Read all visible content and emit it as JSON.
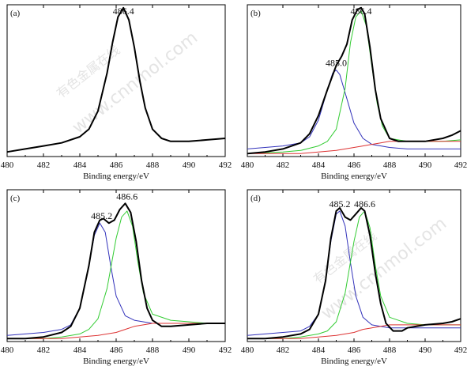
{
  "watermark": {
    "cn": "有色金属在线",
    "url": "www.cnnmol.com"
  },
  "chart_data": [
    {
      "type": "line",
      "panel_label": "(a)",
      "xlabel": "Binding energy/eV",
      "ylabel": "",
      "xlim": [
        480,
        492
      ],
      "xticks": [
        "480",
        "482",
        "484",
        "486",
        "488",
        "490",
        "492"
      ],
      "peak_labels": [
        {
          "text": "486.4",
          "x": 486.4
        }
      ],
      "series": [
        {
          "color": "#000000",
          "x": [
            480,
            481,
            482,
            483,
            484,
            484.5,
            485,
            485.5,
            485.8,
            486.1,
            486.4,
            486.7,
            487.0,
            487.3,
            487.6,
            488,
            488.5,
            489,
            490,
            491,
            492
          ],
          "y": [
            0.03,
            0.05,
            0.07,
            0.09,
            0.13,
            0.18,
            0.3,
            0.55,
            0.75,
            0.92,
            0.98,
            0.9,
            0.72,
            0.5,
            0.32,
            0.18,
            0.12,
            0.1,
            0.1,
            0.11,
            0.12
          ]
        }
      ]
    },
    {
      "type": "line",
      "panel_label": "(b)",
      "xlabel": "Binding energy/eV",
      "ylabel": "",
      "xlim": [
        480,
        492
      ],
      "xticks": [
        "480",
        "482",
        "484",
        "486",
        "488",
        "490",
        "492"
      ],
      "peak_labels": [
        {
          "text": "485.0",
          "x": 485.0
        },
        {
          "text": "486.4",
          "x": 486.4
        }
      ],
      "series": [
        {
          "color": "#000000",
          "x": [
            480,
            481,
            482,
            483,
            483.5,
            484,
            484.5,
            485,
            485.3,
            485.6,
            485.9,
            486.2,
            486.4,
            486.6,
            486.9,
            487.2,
            487.5,
            488,
            488.5,
            489,
            490,
            491,
            491.5,
            492
          ],
          "y": [
            0.02,
            0.03,
            0.05,
            0.09,
            0.15,
            0.27,
            0.44,
            0.6,
            0.66,
            0.74,
            0.9,
            0.97,
            0.98,
            0.94,
            0.72,
            0.44,
            0.25,
            0.12,
            0.1,
            0.1,
            0.1,
            0.12,
            0.14,
            0.17
          ]
        },
        {
          "color": "#3333bb",
          "x": [
            480,
            481,
            482,
            483,
            483.5,
            484,
            484.5,
            484.8,
            485.0,
            485.2,
            485.5,
            486,
            486.5,
            487,
            488,
            489,
            490,
            491,
            492
          ],
          "y": [
            0.05,
            0.06,
            0.07,
            0.09,
            0.13,
            0.24,
            0.44,
            0.55,
            0.57,
            0.54,
            0.42,
            0.22,
            0.12,
            0.08,
            0.06,
            0.05,
            0.05,
            0.05,
            0.05
          ]
        },
        {
          "color": "#33cc33",
          "x": [
            480,
            482,
            483,
            484,
            484.5,
            485,
            485.5,
            485.8,
            486.1,
            486.4,
            486.7,
            487.0,
            487.3,
            487.6,
            488,
            489,
            490,
            491,
            492
          ],
          "y": [
            0.02,
            0.03,
            0.04,
            0.07,
            0.1,
            0.18,
            0.45,
            0.75,
            0.92,
            0.96,
            0.86,
            0.6,
            0.35,
            0.2,
            0.12,
            0.1,
            0.1,
            0.1,
            0.11
          ]
        },
        {
          "color": "#dd3333",
          "x": [
            480,
            481,
            482,
            483,
            484,
            485,
            486,
            486.5,
            487,
            487.5,
            488,
            489,
            490,
            491,
            492
          ],
          "y": [
            0.02,
            0.02,
            0.02,
            0.02,
            0.03,
            0.04,
            0.06,
            0.07,
            0.08,
            0.09,
            0.1,
            0.1,
            0.1,
            0.1,
            0.1
          ]
        }
      ]
    },
    {
      "type": "line",
      "panel_label": "(c)",
      "xlabel": "Binding energy/eV",
      "ylabel": "",
      "xlim": [
        480,
        492
      ],
      "xticks": [
        "480",
        "482",
        "484",
        "486",
        "488",
        "490",
        "492"
      ],
      "peak_labels": [
        {
          "text": "485.2",
          "x": 485.2
        },
        {
          "text": "486.6",
          "x": 486.6
        }
      ],
      "series": [
        {
          "color": "#000000",
          "x": [
            480,
            481,
            482,
            483,
            483.5,
            484,
            484.5,
            484.8,
            485.1,
            485.3,
            485.6,
            485.9,
            486.2,
            486.5,
            486.8,
            487.1,
            487.4,
            487.7,
            488,
            488.5,
            489,
            490,
            491,
            492
          ],
          "y": [
            0.02,
            0.02,
            0.03,
            0.06,
            0.1,
            0.22,
            0.5,
            0.72,
            0.8,
            0.81,
            0.78,
            0.8,
            0.87,
            0.91,
            0.85,
            0.66,
            0.4,
            0.22,
            0.14,
            0.1,
            0.1,
            0.11,
            0.12,
            0.12
          ]
        },
        {
          "color": "#3333bb",
          "x": [
            480,
            481,
            482,
            483,
            483.5,
            484,
            484.5,
            484.8,
            485.1,
            485.4,
            485.7,
            486,
            486.5,
            487,
            488,
            489,
            490,
            491,
            492
          ],
          "y": [
            0.04,
            0.05,
            0.06,
            0.08,
            0.11,
            0.22,
            0.5,
            0.7,
            0.78,
            0.72,
            0.5,
            0.3,
            0.17,
            0.14,
            0.12,
            0.12,
            0.12,
            0.12,
            0.12
          ]
        },
        {
          "color": "#33cc33",
          "x": [
            480,
            482,
            483,
            484,
            484.5,
            485,
            485.5,
            486,
            486.3,
            486.6,
            486.9,
            487.2,
            487.5,
            488,
            489,
            490,
            491,
            492
          ],
          "y": [
            0.02,
            0.02,
            0.03,
            0.05,
            0.08,
            0.15,
            0.35,
            0.68,
            0.82,
            0.86,
            0.76,
            0.52,
            0.32,
            0.18,
            0.14,
            0.13,
            0.12,
            0.12
          ]
        },
        {
          "color": "#dd3333",
          "x": [
            480,
            481,
            482,
            483,
            484,
            485,
            486,
            486.5,
            487,
            487.5,
            488,
            489,
            490,
            491,
            492
          ],
          "y": [
            0.02,
            0.02,
            0.02,
            0.02,
            0.03,
            0.04,
            0.06,
            0.08,
            0.1,
            0.11,
            0.12,
            0.12,
            0.12,
            0.12,
            0.12
          ]
        }
      ]
    },
    {
      "type": "line",
      "panel_label": "(d)",
      "xlabel": "Binding energy/eV",
      "ylabel": "",
      "xlim": [
        480,
        492
      ],
      "xticks": [
        "480",
        "482",
        "484",
        "486",
        "488",
        "490",
        "492"
      ],
      "peak_labels": [
        {
          "text": "485.2",
          "x": 485.2
        },
        {
          "text": "486.6",
          "x": 486.6
        }
      ],
      "series": [
        {
          "color": "#000000",
          "x": [
            480,
            481,
            482,
            483,
            483.5,
            484,
            484.4,
            484.7,
            485.0,
            485.2,
            485.5,
            485.8,
            486.1,
            486.4,
            486.6,
            486.9,
            487.2,
            487.5,
            487.8,
            488.2,
            488.7,
            489,
            490,
            491,
            491.5,
            492
          ],
          "y": [
            0.02,
            0.02,
            0.03,
            0.05,
            0.08,
            0.18,
            0.4,
            0.68,
            0.86,
            0.88,
            0.82,
            0.8,
            0.84,
            0.88,
            0.86,
            0.7,
            0.45,
            0.25,
            0.12,
            0.07,
            0.07,
            0.09,
            0.11,
            0.12,
            0.13,
            0.15
          ]
        },
        {
          "color": "#3333bb",
          "x": [
            480,
            481,
            482,
            483,
            483.5,
            484,
            484.4,
            484.7,
            485.0,
            485.2,
            485.5,
            485.8,
            486.1,
            486.5,
            487,
            488,
            489,
            490,
            491,
            492
          ],
          "y": [
            0.04,
            0.05,
            0.06,
            0.07,
            0.1,
            0.18,
            0.4,
            0.66,
            0.84,
            0.86,
            0.76,
            0.52,
            0.3,
            0.16,
            0.11,
            0.09,
            0.09,
            0.09,
            0.09,
            0.09
          ]
        },
        {
          "color": "#33cc33",
          "x": [
            480,
            482,
            483,
            484,
            484.5,
            485,
            485.5,
            486,
            486.3,
            486.6,
            486.9,
            487.2,
            487.5,
            488,
            489,
            490,
            491,
            492
          ],
          "y": [
            0.02,
            0.02,
            0.03,
            0.05,
            0.07,
            0.13,
            0.32,
            0.66,
            0.82,
            0.86,
            0.75,
            0.5,
            0.3,
            0.16,
            0.12,
            0.11,
            0.11,
            0.11
          ]
        },
        {
          "color": "#dd3333",
          "x": [
            480,
            481,
            482,
            483,
            484,
            485,
            486,
            486.5,
            487,
            487.5,
            488,
            489,
            490,
            491,
            492
          ],
          "y": [
            0.02,
            0.02,
            0.02,
            0.02,
            0.03,
            0.04,
            0.06,
            0.08,
            0.09,
            0.1,
            0.11,
            0.11,
            0.11,
            0.11,
            0.11
          ]
        }
      ]
    }
  ]
}
